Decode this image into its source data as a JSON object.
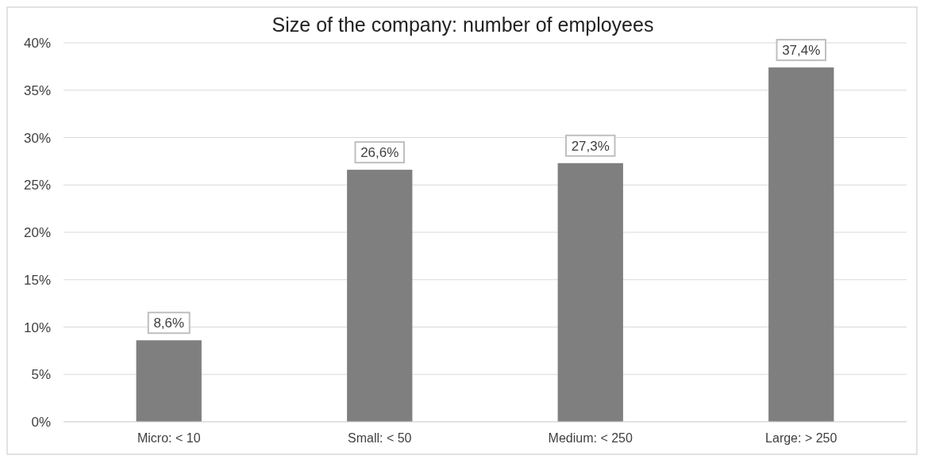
{
  "chart_data": {
    "type": "bar",
    "title": "Size of the company: number of employees",
    "categories": [
      "Micro: < 10",
      "Small: < 50",
      "Medium: < 250",
      "Large: > 250"
    ],
    "values": [
      8.6,
      26.6,
      27.3,
      37.4
    ],
    "value_labels": [
      "8,6%",
      "26,6%",
      "27,3%",
      "37,4%"
    ],
    "color": "#7f7f7f",
    "ylim": [
      0,
      40
    ],
    "yticks": [
      {
        "value": 0,
        "label": "0%"
      },
      {
        "value": 5,
        "label": "5%"
      },
      {
        "value": 10,
        "label": "10%"
      },
      {
        "value": 15,
        "label": "15%"
      },
      {
        "value": 20,
        "label": "20%"
      },
      {
        "value": 25,
        "label": "25%"
      },
      {
        "value": 30,
        "label": "30%"
      },
      {
        "value": 35,
        "label": "35%"
      },
      {
        "value": 40,
        "label": "40%"
      }
    ],
    "grid": "y"
  }
}
